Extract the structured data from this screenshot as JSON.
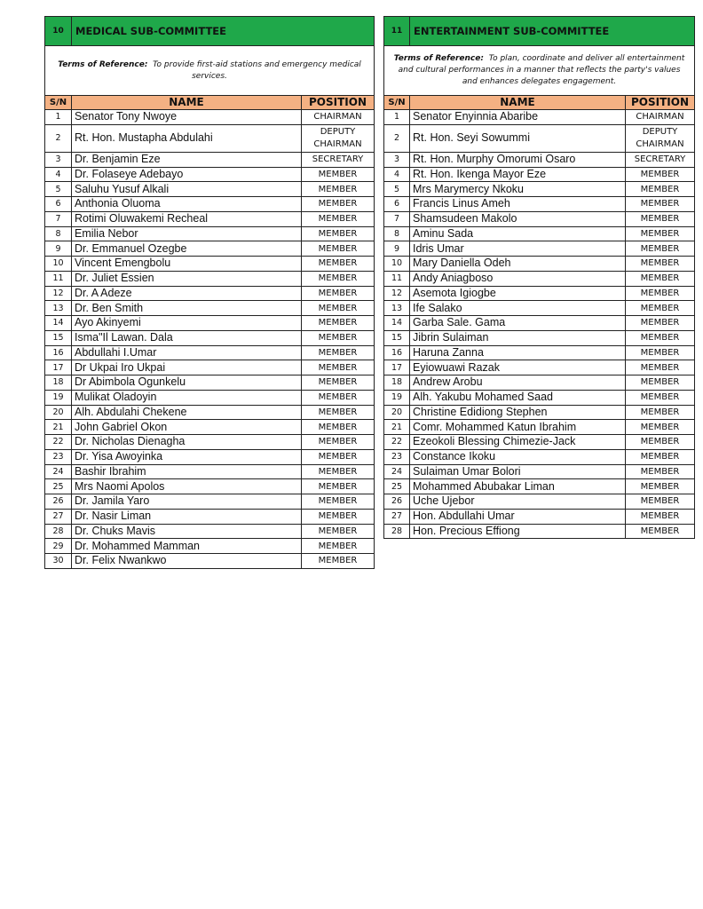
{
  "committees": [
    {
      "number": "10",
      "title": "MEDICAL SUB-COMMITTEE",
      "tor_label": "Terms of Reference:",
      "tor_text": "To provide first-aid stations and emergency medical services.",
      "headers": {
        "sn": "S/N",
        "name": "NAME",
        "position": "POSITION"
      },
      "members": [
        {
          "sn": "1",
          "name": "Senator Tony Nwoye",
          "position": "CHAIRMAN"
        },
        {
          "sn": "2",
          "name": "Rt. Hon. Mustapha Abdulahi",
          "position": "DEPUTY CHAIRMAN"
        },
        {
          "sn": "3",
          "name": "Dr. Benjamin Eze",
          "position": "SECRETARY"
        },
        {
          "sn": "4",
          "name": "Dr. Folaseye Adebayo",
          "position": "MEMBER"
        },
        {
          "sn": "5",
          "name": "Saluhu Yusuf Alkali",
          "position": "MEMBER"
        },
        {
          "sn": "6",
          "name": "Anthonia Oluoma",
          "position": "MEMBER"
        },
        {
          "sn": "7",
          "name": "Rotimi Oluwakemi Recheal",
          "position": "MEMBER"
        },
        {
          "sn": "8",
          "name": "Emilia Nebor",
          "position": "MEMBER"
        },
        {
          "sn": "9",
          "name": "Dr. Emmanuel Ozegbe",
          "position": "MEMBER"
        },
        {
          "sn": "10",
          "name": "Vincent Emengbolu",
          "position": "MEMBER"
        },
        {
          "sn": "11",
          "name": "Dr. Juliet Essien",
          "position": "MEMBER"
        },
        {
          "sn": "12",
          "name": "Dr. A Adeze",
          "position": "MEMBER"
        },
        {
          "sn": "13",
          "name": "Dr. Ben Smith",
          "position": "MEMBER"
        },
        {
          "sn": "14",
          "name": "Ayo Akinyemi",
          "position": "MEMBER"
        },
        {
          "sn": "15",
          "name": "Isma\"Il Lawan. Dala",
          "position": "MEMBER"
        },
        {
          "sn": "16",
          "name": "Abdullahi I.Umar",
          "position": "MEMBER"
        },
        {
          "sn": "17",
          "name": "Dr Ukpai Iro Ukpai",
          "position": "MEMBER"
        },
        {
          "sn": "18",
          "name": "Dr Abimbola Ogunkelu",
          "position": "MEMBER"
        },
        {
          "sn": "19",
          "name": "Mulikat Oladoyin",
          "position": "MEMBER"
        },
        {
          "sn": "20",
          "name": "Alh. Abdulahi Chekene",
          "position": "MEMBER"
        },
        {
          "sn": "21",
          "name": "John Gabriel Okon",
          "position": "MEMBER"
        },
        {
          "sn": "22",
          "name": "Dr. Nicholas Dienagha",
          "position": "MEMBER"
        },
        {
          "sn": "23",
          "name": "Dr. Yisa Awoyinka",
          "position": "MEMBER"
        },
        {
          "sn": "24",
          "name": "Bashir Ibrahim",
          "position": "MEMBER"
        },
        {
          "sn": "25",
          "name": "Mrs Naomi  Apolos",
          "position": "MEMBER"
        },
        {
          "sn": "26",
          "name": "Dr. Jamila Yaro",
          "position": "MEMBER"
        },
        {
          "sn": "27",
          "name": "Dr. Nasir Liman",
          "position": "MEMBER"
        },
        {
          "sn": "28",
          "name": "Dr. Chuks Mavis",
          "position": "MEMBER"
        },
        {
          "sn": "29",
          "name": "Dr. Mohammed Mamman",
          "position": "MEMBER"
        },
        {
          "sn": "30",
          "name": "Dr. Felix Nwankwo",
          "position": "MEMBER"
        }
      ]
    },
    {
      "number": "11",
      "title": "ENTERTAINMENT SUB-COMMITTEE",
      "tor_label": "Terms of Reference:",
      "tor_text": "To plan, coordinate and deliver all entertainment and cultural performances in a manner that reflects the party's values and enhances delegates engagement.",
      "headers": {
        "sn": "S/N",
        "name": "NAME",
        "position": "POSITION"
      },
      "members": [
        {
          "sn": "1",
          "name": "Senator Enyinnia Abaribe",
          "position": "CHAIRMAN"
        },
        {
          "sn": "2",
          "name": "Rt. Hon. Seyi Sowummi",
          "position": "DEPUTY CHAIRMAN"
        },
        {
          "sn": "3",
          "name": "Rt. Hon. Murphy Omorumi Osaro",
          "position": "SECRETARY"
        },
        {
          "sn": "4",
          "name": "Rt. Hon. Ikenga Mayor Eze",
          "position": "MEMBER"
        },
        {
          "sn": "5",
          "name": "Mrs Marymercy Nkoku",
          "position": "MEMBER"
        },
        {
          "sn": "6",
          "name": "Francis Linus Ameh",
          "position": "MEMBER"
        },
        {
          "sn": "7",
          "name": "Shamsudeen Makolo",
          "position": "MEMBER"
        },
        {
          "sn": "8",
          "name": "Aminu Sada",
          "position": "MEMBER"
        },
        {
          "sn": "9",
          "name": "Idris Umar",
          "position": "MEMBER"
        },
        {
          "sn": "10",
          "name": "Mary Daniella Odeh",
          "position": "MEMBER"
        },
        {
          "sn": "11",
          "name": "Andy Aniagboso",
          "position": "MEMBER"
        },
        {
          "sn": "12",
          "name": "Asemota Igiogbe",
          "position": "MEMBER"
        },
        {
          "sn": "13",
          "name": "Ife Salako",
          "position": "MEMBER"
        },
        {
          "sn": "14",
          "name": "Garba Sale. Gama",
          "position": "MEMBER"
        },
        {
          "sn": "15",
          "name": "Jibrin Sulaiman",
          "position": "MEMBER"
        },
        {
          "sn": "16",
          "name": "Haruna Zanna",
          "position": "MEMBER"
        },
        {
          "sn": "17",
          "name": "Eyiowuawi Razak",
          "position": "MEMBER"
        },
        {
          "sn": "18",
          "name": "Andrew Arobu",
          "position": "MEMBER"
        },
        {
          "sn": "19",
          "name": "Alh. Yakubu Mohamed Saad",
          "position": "MEMBER"
        },
        {
          "sn": "20",
          "name": "Christine Edidiong Stephen",
          "position": "MEMBER"
        },
        {
          "sn": "21",
          "name": "Comr. Mohammed Katun Ibrahim",
          "position": "MEMBER"
        },
        {
          "sn": "22",
          "name": "Ezeokoli Blessing Chimezie-Jack",
          "position": "MEMBER"
        },
        {
          "sn": "23",
          "name": "Constance Ikoku",
          "position": "MEMBER"
        },
        {
          "sn": "24",
          "name": "Sulaiman Umar Bolori",
          "position": "MEMBER"
        },
        {
          "sn": "25",
          "name": "Mohammed Abubakar Liman",
          "position": "MEMBER"
        },
        {
          "sn": "26",
          "name": "Uche Ujebor",
          "position": "MEMBER"
        },
        {
          "sn": "27",
          "name": "Hon. Abdullahi Umar",
          "position": "MEMBER"
        },
        {
          "sn": "28",
          "name": "Hon. Precious Effiong",
          "position": "MEMBER"
        }
      ]
    }
  ],
  "colors": {
    "title_bg": "#1fa84a",
    "header_bg": "#f4b183",
    "border": "#222222"
  }
}
